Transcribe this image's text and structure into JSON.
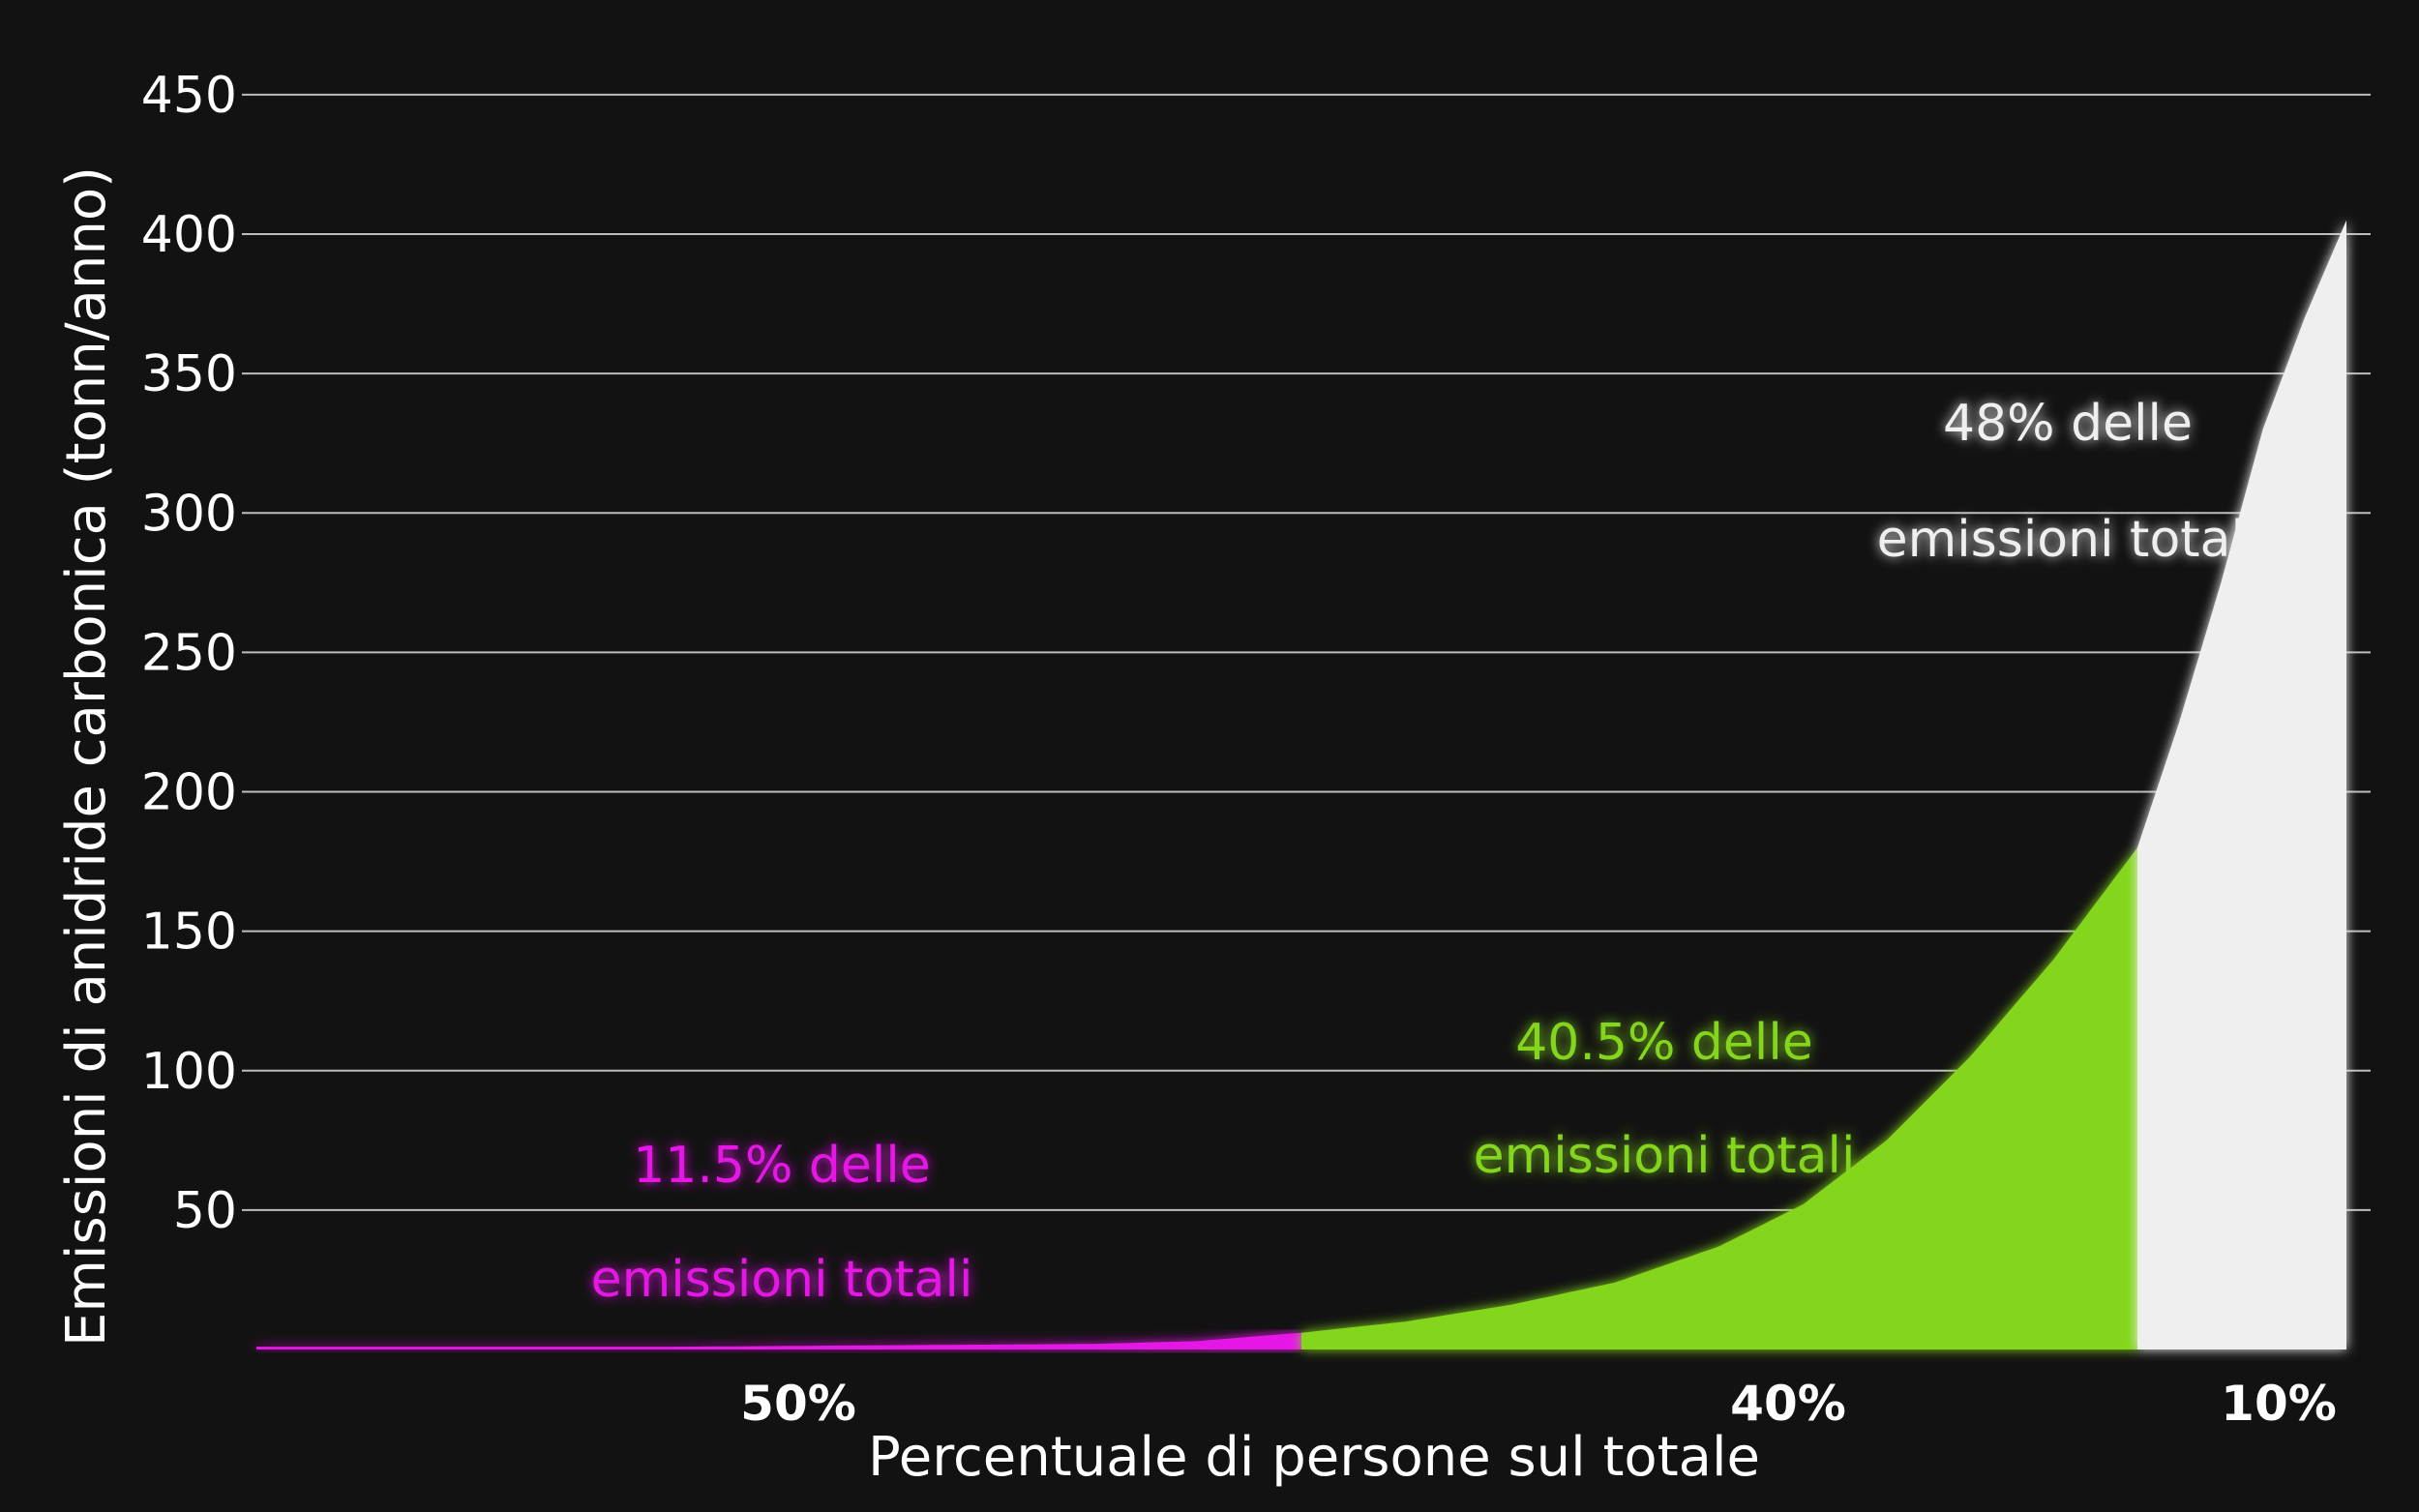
{
  "chart_data": {
    "type": "area",
    "xlabel": "Percentuale di persone sul totale",
    "ylabel": "Emissioni di anidride carbonica (tonn/anno)",
    "ylim": [
      0,
      450
    ],
    "yticks": [
      50,
      100,
      150,
      200,
      250,
      300,
      350,
      400,
      450
    ],
    "xlim": [
      0,
      100
    ],
    "grid": true,
    "colors": {
      "bottom50": "#e619e6",
      "middle40": "#84d61e",
      "top10": "#efefef",
      "background": "#121212"
    },
    "segments": [
      {
        "label": "50%",
        "share": 50,
        "annotation_line1": "11.5% delle",
        "annotation_line2": "emissioni totali"
      },
      {
        "label": "40%",
        "share": 40,
        "annotation_line1": "40.5% delle",
        "annotation_line2": "emissioni totali"
      },
      {
        "label": "10%",
        "share": 10,
        "annotation_line1": "48% delle",
        "annotation_line2": "emissioni totali"
      }
    ],
    "series": [
      {
        "x": [
          0,
          10,
          20,
          30,
          40,
          45,
          50,
          55,
          60,
          65,
          70,
          74,
          78,
          82,
          86,
          88,
          90,
          92,
          94,
          96,
          98,
          100
        ],
        "y": [
          1,
          1,
          1,
          1.5,
          2,
          3,
          6,
          10,
          16,
          24,
          37,
          52,
          75,
          105,
          140,
          160,
          180,
          225,
          275,
          330,
          370,
          405
        ]
      }
    ]
  }
}
